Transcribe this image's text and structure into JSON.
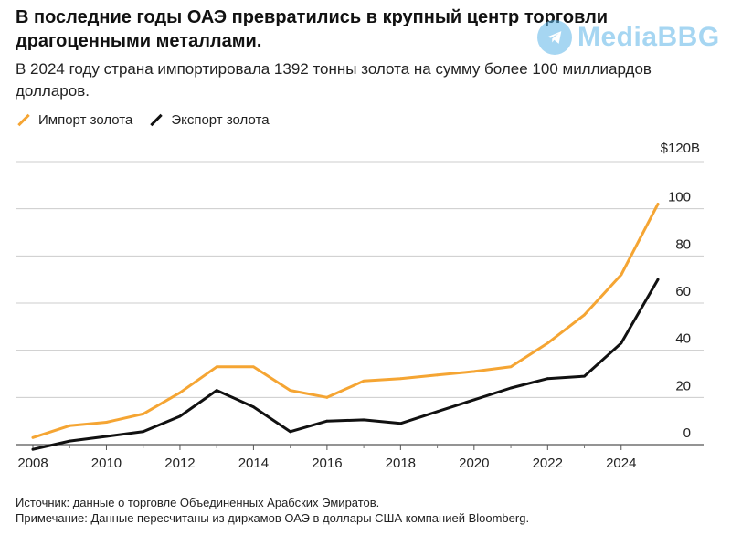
{
  "title": "В последние годы ОАЭ превратились в крупный центр торговли драгоценными металлами.",
  "subtitle": "В 2024 году страна импортировала 1392 тонны золота на сумму более 100 миллиардов долларов.",
  "watermark": "MediaBBG",
  "source_note": "Источник: данные о торговле Объединенных Арабских Эмиратов.",
  "footnote": "Примечание: Данные пересчитаны из дирхамов ОАЭ в доллары США компанией Bloomberg.",
  "colors": {
    "import": "#f5a533",
    "export": "#111111",
    "grid": "#cccccc"
  },
  "chart_data": {
    "type": "line",
    "title": "В последние годы ОАЭ превратились в крупный центр торговли драгоценными металлами.",
    "xlabel": "",
    "ylabel": "",
    "xlim": [
      2008,
      2025
    ],
    "ylim": [
      0,
      120
    ],
    "x_ticks": [
      2008,
      2010,
      2012,
      2014,
      2016,
      2018,
      2020,
      2022,
      2024
    ],
    "y_ticks": [
      0,
      20,
      40,
      60,
      80,
      100,
      120
    ],
    "y_tick_labels": [
      "0",
      "20",
      "40",
      "60",
      "80",
      "100",
      "$120B"
    ],
    "grid": true,
    "legend_position": "top-left",
    "series": [
      {
        "name": "Импорт золота",
        "color": "#f5a533",
        "x": [
          2008,
          2009,
          2010,
          2011,
          2012,
          2013,
          2014,
          2015,
          2016,
          2017,
          2018,
          2019,
          2020,
          2021,
          2022,
          2023,
          2024,
          2025
        ],
        "values": [
          3,
          8,
          9.5,
          13,
          22,
          33,
          33,
          23,
          20,
          27,
          28,
          29.5,
          31,
          33,
          43,
          55,
          72,
          102
        ]
      },
      {
        "name": "Экспорт золота",
        "color": "#111111",
        "x": [
          2008,
          2009,
          2010,
          2011,
          2012,
          2013,
          2014,
          2015,
          2016,
          2017,
          2018,
          2019,
          2020,
          2021,
          2022,
          2023,
          2024,
          2025
        ],
        "values": [
          -2,
          1.5,
          3.5,
          5.5,
          12,
          23,
          16,
          5.5,
          10,
          10.5,
          9,
          14,
          19,
          24,
          28,
          29,
          43,
          70
        ]
      }
    ]
  }
}
